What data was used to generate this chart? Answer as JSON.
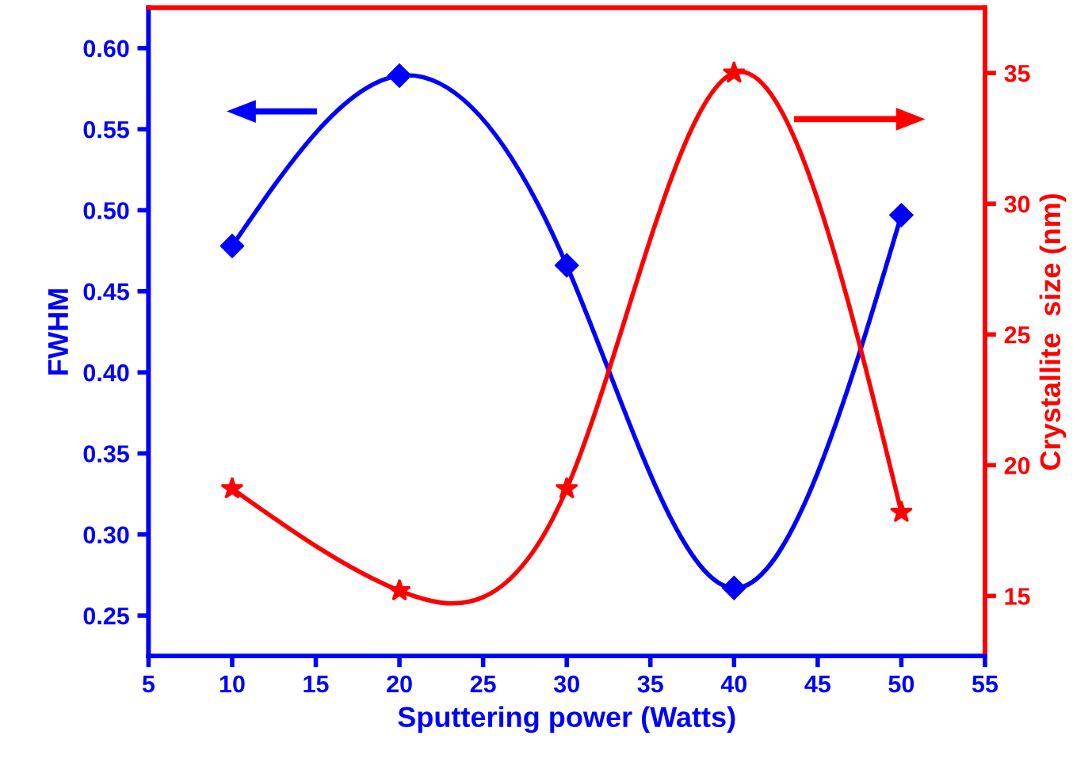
{
  "chart_data": {
    "type": "line",
    "xlabel": "Sputtering power (Watts)",
    "ylabel": "FWHM",
    "y2label": "Crystallite  size (nm)",
    "x": [
      10,
      20,
      30,
      40,
      50
    ],
    "series": [
      {
        "color": "#0000ff",
        "values": [
          0.478,
          0.583,
          0.466,
          0.267,
          0.497
        ],
        "marker": "diamond"
      },
      {
        "color": "#ff0000",
        "values": [
          19.1,
          15.2,
          19.1,
          35.0,
          18.2
        ],
        "marker": "star",
        "axis": "y2"
      }
    ],
    "xlim": [
      5,
      55
    ],
    "xticks": [
      5,
      10,
      15,
      20,
      25,
      30,
      35,
      40,
      45,
      50,
      55
    ],
    "ylim": [
      0.225,
      0.625
    ],
    "yticks": [
      0.25,
      {
        "value": 0.3,
        "label": "0.30"
      },
      0.35,
      {
        "value": 0.4,
        "label": "0.40"
      },
      0.45,
      {
        "value": 0.5,
        "label": "0.50"
      },
      0.55,
      {
        "value": 0.6,
        "label": "0.60"
      }
    ],
    "y2lim": [
      12.7,
      37.5
    ],
    "y2ticks": [
      15,
      20,
      25,
      30,
      35
    ],
    "grid": false,
    "legend": false
  }
}
